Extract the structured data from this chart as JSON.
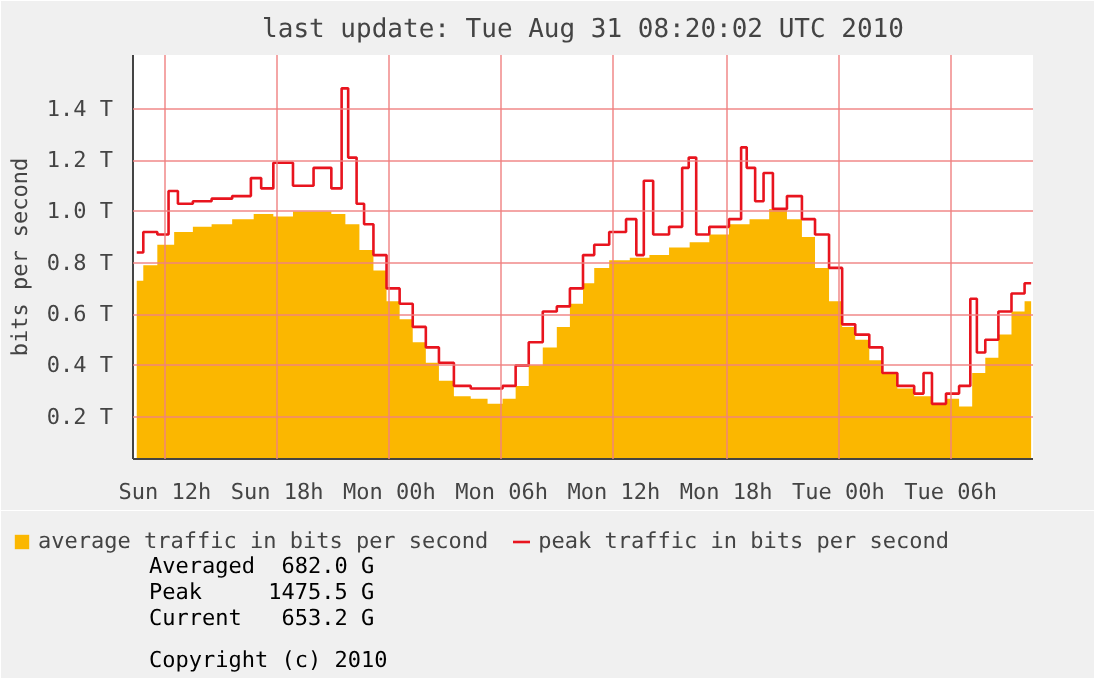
{
  "chart_data": {
    "type": "area",
    "title": "last update: Tue Aug 31 08:20:02 UTC 2010",
    "ylabel": "bits per second",
    "xlim": [
      "2010-08-29T10:18",
      "2010-08-31T10:24"
    ],
    "ylim": [
      0.035,
      1.61
    ],
    "xticks": [
      {
        "value": "2010-08-29T12:00",
        "label": "Sun 12h"
      },
      {
        "value": "2010-08-29T18:00",
        "label": "Sun 18h"
      },
      {
        "value": "2010-08-30T00:00",
        "label": "Mon 00h"
      },
      {
        "value": "2010-08-30T06:00",
        "label": "Mon 06h"
      },
      {
        "value": "2010-08-30T12:00",
        "label": "Mon 12h"
      },
      {
        "value": "2010-08-30T18:00",
        "label": "Mon 18h"
      },
      {
        "value": "2010-08-31T00:00",
        "label": "Tue 00h"
      },
      {
        "value": "2010-08-31T06:00",
        "label": "Tue 06h"
      }
    ],
    "yticks": [
      {
        "value": 0.2,
        "label": "0.2 T"
      },
      {
        "value": 0.4,
        "label": "0.4 T"
      },
      {
        "value": 0.6,
        "label": "0.6 T"
      },
      {
        "value": 0.8,
        "label": "0.8 T"
      },
      {
        "value": 1.0,
        "label": "1.0 T"
      },
      {
        "value": 1.2,
        "label": "1.2 T"
      },
      {
        "value": 1.4,
        "label": "1.4 T"
      }
    ],
    "grid": true,
    "legend": "bottom",
    "series": [
      {
        "name": "average traffic in bits per second",
        "color": "#fbb700",
        "x": [
          "2010-08-29T10:30",
          "2010-08-29T11:12",
          "2010-08-29T12:00",
          "2010-08-29T13:00",
          "2010-08-29T14:00",
          "2010-08-29T15:00",
          "2010-08-29T16:12",
          "2010-08-29T17:18",
          "2010-08-29T18:18",
          "2010-08-29T19:24",
          "2010-08-29T20:30",
          "2010-08-29T21:18",
          "2010-08-29T22:00",
          "2010-08-29T22:48",
          "2010-08-29T23:30",
          "2010-08-30T00:12",
          "2010-08-30T00:54",
          "2010-08-30T01:36",
          "2010-08-30T02:18",
          "2010-08-30T03:00",
          "2010-08-30T03:54",
          "2010-08-30T04:48",
          "2010-08-30T05:42",
          "2010-08-30T06:24",
          "2010-08-30T07:06",
          "2010-08-30T07:48",
          "2010-08-30T08:36",
          "2010-08-30T09:18",
          "2010-08-30T10:00",
          "2010-08-30T10:42",
          "2010-08-30T11:12",
          "2010-08-30T12:18",
          "2010-08-30T13:24",
          "2010-08-30T14:24",
          "2010-08-30T15:30",
          "2010-08-30T16:36",
          "2010-08-30T17:36",
          "2010-08-30T18:42",
          "2010-08-30T19:48",
          "2010-08-30T20:48",
          "2010-08-30T21:42",
          "2010-08-30T22:24",
          "2010-08-30T23:06",
          "2010-08-30T23:54",
          "2010-08-31T00:30",
          "2010-08-31T01:18",
          "2010-08-31T02:00",
          "2010-08-31T02:42",
          "2010-08-31T03:36",
          "2010-08-31T04:30",
          "2010-08-31T05:24",
          "2010-08-31T06:06",
          "2010-08-31T06:48",
          "2010-08-31T07:30",
          "2010-08-31T08:12",
          "2010-08-31T08:54",
          "2010-08-31T09:36",
          "2010-08-31T10:18"
        ],
        "values": [
          0.73,
          0.79,
          0.87,
          0.92,
          0.94,
          0.95,
          0.97,
          0.99,
          0.98,
          1.0,
          1.0,
          0.99,
          0.95,
          0.85,
          0.77,
          0.65,
          0.58,
          0.49,
          0.41,
          0.34,
          0.28,
          0.27,
          0.25,
          0.27,
          0.32,
          0.4,
          0.47,
          0.55,
          0.64,
          0.72,
          0.78,
          0.81,
          0.82,
          0.83,
          0.86,
          0.88,
          0.91,
          0.95,
          0.97,
          1.01,
          0.97,
          0.9,
          0.78,
          0.65,
          0.55,
          0.5,
          0.42,
          0.37,
          0.31,
          0.28,
          0.25,
          0.27,
          0.24,
          0.37,
          0.43,
          0.52,
          0.61,
          0.65
        ]
      },
      {
        "name": "peak traffic in bits per second",
        "type": "step",
        "color": "#e8141e",
        "x": [
          "2010-08-29T10:30",
          "2010-08-29T11:12",
          "2010-08-29T12:00",
          "2010-08-29T12:24",
          "2010-08-29T13:00",
          "2010-08-29T14:00",
          "2010-08-29T15:00",
          "2010-08-29T16:12",
          "2010-08-29T17:00",
          "2010-08-29T17:18",
          "2010-08-29T18:18",
          "2010-08-29T19:24",
          "2010-08-29T20:30",
          "2010-08-29T21:18",
          "2010-08-29T21:36",
          "2010-08-29T22:00",
          "2010-08-29T22:30",
          "2010-08-29T22:48",
          "2010-08-29T23:30",
          "2010-08-30T00:12",
          "2010-08-30T00:54",
          "2010-08-30T01:36",
          "2010-08-30T02:18",
          "2010-08-30T03:00",
          "2010-08-30T03:54",
          "2010-08-30T04:48",
          "2010-08-30T05:42",
          "2010-08-30T06:24",
          "2010-08-30T07:06",
          "2010-08-30T07:48",
          "2010-08-30T08:36",
          "2010-08-30T09:18",
          "2010-08-30T10:00",
          "2010-08-30T10:42",
          "2010-08-30T11:12",
          "2010-08-30T12:18",
          "2010-08-30T13:00",
          "2010-08-30T13:24",
          "2010-08-30T13:48",
          "2010-08-30T14:24",
          "2010-08-30T15:30",
          "2010-08-30T15:48",
          "2010-08-30T16:12",
          "2010-08-30T16:36",
          "2010-08-30T17:36",
          "2010-08-30T18:42",
          "2010-08-30T18:54",
          "2010-08-30T19:18",
          "2010-08-30T19:48",
          "2010-08-30T20:12",
          "2010-08-30T20:48",
          "2010-08-30T21:42",
          "2010-08-30T22:24",
          "2010-08-30T23:06",
          "2010-08-30T23:54",
          "2010-08-31T00:30",
          "2010-08-31T01:18",
          "2010-08-31T02:00",
          "2010-08-31T02:42",
          "2010-08-31T03:36",
          "2010-08-31T04:30",
          "2010-08-31T04:36",
          "2010-08-31T05:24",
          "2010-08-31T06:06",
          "2010-08-31T06:48",
          "2010-08-31T07:18",
          "2010-08-31T07:30",
          "2010-08-31T08:12",
          "2010-08-31T08:54",
          "2010-08-31T09:36",
          "2010-08-31T10:18"
        ],
        "values": [
          0.84,
          0.92,
          0.91,
          1.08,
          1.03,
          1.04,
          1.05,
          1.06,
          1.13,
          1.09,
          1.19,
          1.1,
          1.17,
          1.09,
          1.48,
          1.21,
          1.03,
          0.95,
          0.83,
          0.7,
          0.64,
          0.55,
          0.47,
          0.41,
          0.32,
          0.31,
          0.31,
          0.32,
          0.4,
          0.49,
          0.61,
          0.63,
          0.7,
          0.83,
          0.87,
          0.92,
          0.97,
          0.83,
          1.12,
          0.91,
          0.94,
          1.17,
          1.21,
          0.91,
          0.94,
          0.97,
          1.25,
          1.17,
          1.04,
          1.15,
          1.01,
          1.06,
          0.97,
          0.91,
          0.78,
          0.56,
          0.52,
          0.47,
          0.37,
          0.32,
          0.29,
          0.37,
          0.25,
          0.29,
          0.32,
          0.66,
          0.45,
          0.5,
          0.61,
          0.68,
          0.72
        ]
      }
    ],
    "annotations": [
      "Averaged  682.0 G",
      "Peak     1475.5 G",
      "Current   653.2 G",
      "Copyright (c) 2010"
    ]
  }
}
